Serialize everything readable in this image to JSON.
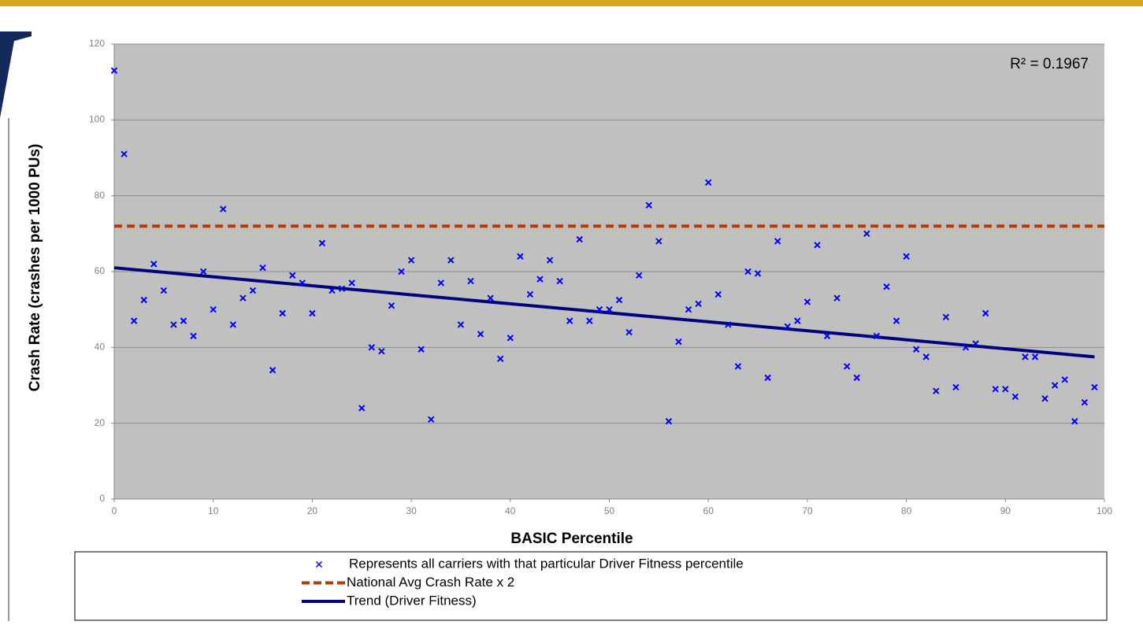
{
  "chart_data": {
    "type": "scatter",
    "x_label": "BASIC Percentile",
    "y_label": "Crash Rate (crashes per 1000 PUs)",
    "annotation": "R² = 0.1967",
    "xlim": [
      0,
      100
    ],
    "ylim": [
      0,
      120
    ],
    "xticks": [
      0,
      10,
      20,
      30,
      40,
      50,
      60,
      70,
      80,
      90,
      100
    ],
    "yticks": [
      0,
      20,
      40,
      60,
      80,
      100,
      120
    ],
    "grid": true,
    "plot_background": "#c0c0c0",
    "series": [
      {
        "name": "Represents all carriers with that particular Driver Fitness percentile",
        "type": "scatter",
        "color": "#0000ff",
        "x": [
          0,
          1,
          2,
          3,
          4,
          5,
          6,
          7,
          8,
          9,
          10,
          11,
          12,
          13,
          14,
          15,
          16,
          17,
          18,
          19,
          20,
          21,
          22,
          23,
          24,
          25,
          26,
          27,
          28,
          29,
          30,
          31,
          32,
          33,
          34,
          35,
          36,
          37,
          38,
          39,
          40,
          41,
          42,
          43,
          44,
          45,
          46,
          47,
          48,
          49,
          50,
          51,
          52,
          53,
          54,
          55,
          56,
          57,
          58,
          59,
          60,
          61,
          62,
          63,
          64,
          65,
          66,
          67,
          68,
          69,
          70,
          71,
          72,
          73,
          74,
          75,
          76,
          77,
          78,
          79,
          80,
          81,
          82,
          83,
          84,
          85,
          86,
          87,
          88,
          89,
          90,
          91,
          92,
          93,
          94,
          95,
          96,
          97,
          98,
          99
        ],
        "values": [
          113,
          91,
          47,
          52.5,
          62,
          55,
          46,
          47,
          43,
          60,
          50,
          76.5,
          46,
          53,
          55,
          61,
          34,
          49,
          59,
          57,
          49,
          67.5,
          55,
          55.5,
          57,
          24,
          40,
          39,
          51,
          60,
          63,
          39.5,
          21,
          57,
          63,
          46,
          57.5,
          43.5,
          53,
          37,
          42.5,
          64,
          54,
          58,
          63,
          57.5,
          47,
          68.5,
          47,
          50,
          50,
          52.5,
          44,
          59,
          77.5,
          68,
          20.5,
          41.5,
          50,
          51.5,
          83.5,
          54,
          46,
          35,
          60,
          59.5,
          32,
          68,
          45.5,
          47,
          52,
          67,
          43,
          53,
          35,
          32,
          70,
          43,
          56,
          47,
          64,
          39.5,
          37.5,
          28.5,
          48,
          29.5,
          40,
          41,
          49,
          29,
          29,
          27,
          37.5,
          37.5,
          26.5,
          30,
          31.5,
          20.5,
          25.5,
          29.5
        ]
      },
      {
        "name": "National Avg Crash Rate x 2",
        "type": "line",
        "dashed": true,
        "color": "#b33c00",
        "x": [
          0,
          100
        ],
        "values": [
          72,
          72
        ]
      },
      {
        "name": "Trend (Driver Fitness)",
        "type": "line",
        "dashed": false,
        "color": "#000080",
        "x": [
          0,
          99
        ],
        "values": [
          61,
          37.5
        ]
      }
    ]
  }
}
